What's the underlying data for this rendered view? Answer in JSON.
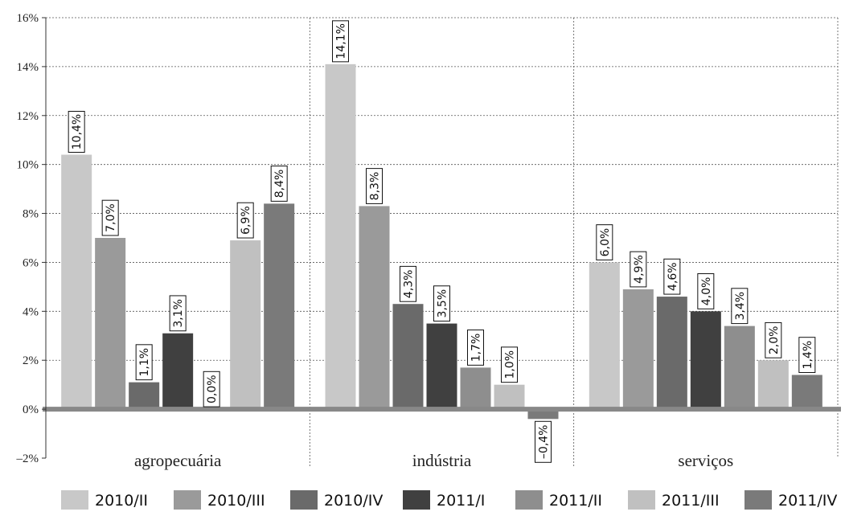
{
  "chart_data": {
    "type": "bar",
    "categories": [
      "agropecuária",
      "indústria",
      "serviços"
    ],
    "series": [
      {
        "name": "2010/II",
        "color": "#c8c8c8",
        "values": [
          10.4,
          14.1,
          6.0
        ]
      },
      {
        "name": "2010/III",
        "color": "#9a9a9a",
        "values": [
          7.0,
          8.3,
          4.9
        ]
      },
      {
        "name": "2010/IV",
        "color": "#6a6a6a",
        "values": [
          1.1,
          4.3,
          4.6
        ]
      },
      {
        "name": "2011/I",
        "color": "#404040",
        "values": [
          3.1,
          3.5,
          4.0
        ]
      },
      {
        "name": "2011/II",
        "color": "#8e8e8e",
        "values": [
          0.0,
          1.7,
          3.4
        ]
      },
      {
        "name": "2011/III",
        "color": "#c0c0c0",
        "values": [
          6.9,
          1.0,
          2.0
        ]
      },
      {
        "name": "2011/IV",
        "color": "#7a7a7a",
        "values": [
          8.4,
          -0.4,
          1.4
        ]
      }
    ],
    "data_labels": [
      [
        "10,4%",
        "14,1%",
        "6,0%"
      ],
      [
        "7,0%",
        "8,3%",
        "4,9%"
      ],
      [
        "1,1%",
        "4,3%",
        "4,6%"
      ],
      [
        "3,1%",
        "3,5%",
        "4,0%"
      ],
      [
        "0,0%",
        "1,7%",
        "3,4%"
      ],
      [
        "6,9%",
        "1,0%",
        "2,0%"
      ],
      [
        "8,4%",
        "–0,4%",
        "1,4%"
      ]
    ],
    "y_ticks": [
      {
        "value": 16,
        "label": "16%"
      },
      {
        "value": 14,
        "label": "14%"
      },
      {
        "value": 12,
        "label": "12%"
      },
      {
        "value": 10,
        "label": "10%"
      },
      {
        "value": 8,
        "label": "8%"
      },
      {
        "value": 6,
        "label": "6%"
      },
      {
        "value": 4,
        "label": "4%"
      },
      {
        "value": 2,
        "label": "2%"
      },
      {
        "value": 0,
        "label": "0%"
      },
      {
        "value": -2,
        "label": "–2%"
      }
    ],
    "ylim": [
      -2,
      16
    ],
    "grid": true,
    "legend": "bottom",
    "title": "",
    "xlabel": "",
    "ylabel": ""
  }
}
